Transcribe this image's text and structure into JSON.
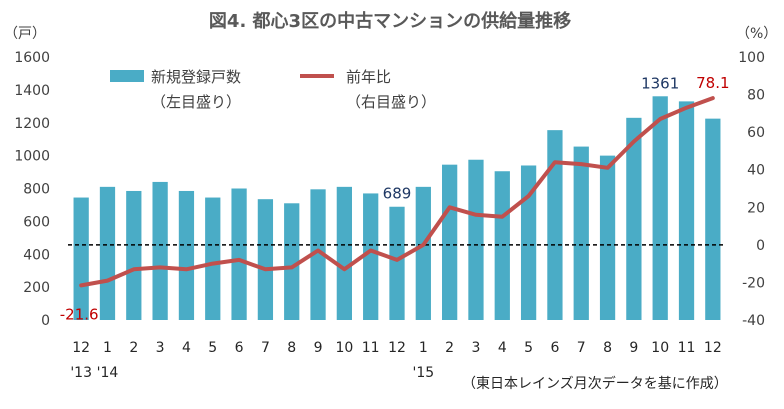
{
  "chart_data": {
    "type": "bar",
    "title": "図4. 都心3区の中古マンションの供給量推移",
    "left_unit": "（戸）",
    "right_unit": "（%）",
    "source": "（東日本レインズ月次データを基に作成）",
    "categories": [
      "12",
      "1",
      "2",
      "3",
      "4",
      "5",
      "6",
      "7",
      "8",
      "9",
      "10",
      "11",
      "12",
      "1",
      "2",
      "3",
      "4",
      "5",
      "6",
      "7",
      "8",
      "9",
      "10",
      "11",
      "12"
    ],
    "year_labels": [
      {
        "index": 0,
        "text": "'13"
      },
      {
        "index": 1,
        "text": "'14"
      },
      {
        "index": 13,
        "text": "'15"
      }
    ],
    "y_left": {
      "min": 0,
      "max": 1600,
      "ticks": [
        0,
        200,
        400,
        600,
        800,
        1000,
        1200,
        1400,
        1600
      ]
    },
    "y_right": {
      "min": -40,
      "max": 100,
      "ticks": [
        -40,
        -20,
        0,
        20,
        40,
        60,
        80,
        100
      ]
    },
    "series": [
      {
        "name": "新規登録戸数",
        "name_note": "（左目盛り）",
        "type": "bar",
        "axis": "left",
        "color": "#4aacc6",
        "values": [
          745,
          810,
          785,
          840,
          785,
          745,
          800,
          735,
          710,
          795,
          810,
          770,
          689,
          810,
          945,
          975,
          905,
          940,
          1155,
          1055,
          1000,
          1230,
          1361,
          1330,
          1225
        ]
      },
      {
        "name": "前年比",
        "name_note": "（右目盛り）",
        "type": "line",
        "axis": "right",
        "color": "#c0504d",
        "values": [
          -21.6,
          -19,
          -13,
          -12,
          -13,
          -10,
          -8,
          -13,
          -12,
          -3,
          -13,
          -3,
          -8,
          0,
          20,
          16,
          15,
          26,
          44,
          43,
          41,
          55,
          67,
          73,
          78.1
        ]
      }
    ],
    "data_labels": [
      {
        "series": 0,
        "index": 12,
        "text": "689",
        "color": "#1f3864"
      },
      {
        "series": 0,
        "index": 22,
        "text": "1361",
        "color": "#1f3864"
      },
      {
        "series": 1,
        "index": 0,
        "text": "-21.6",
        "color": "#c00000"
      },
      {
        "series": 1,
        "index": 24,
        "text": "78.1",
        "color": "#c00000"
      }
    ],
    "zero_line": {
      "axis": "right",
      "value": 0,
      "style": "dashed"
    },
    "grid": false,
    "legend_position": "top-left"
  }
}
